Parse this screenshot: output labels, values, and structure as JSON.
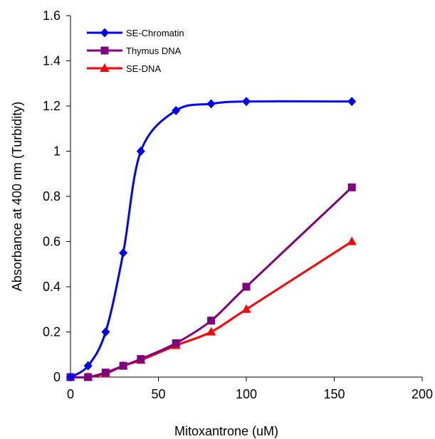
{
  "chart_data": {
    "type": "line",
    "title": "",
    "xlabel": "Mitoxantrone (uM)",
    "ylabel": "Absorbance at 400 nm (Turbidity)",
    "xlim": [
      0,
      200
    ],
    "ylim": [
      0,
      1.6
    ],
    "xticks": [
      0,
      50,
      100,
      150,
      200
    ],
    "yticks": [
      0,
      0.2,
      0.4,
      0.6,
      0.8,
      1,
      1.2,
      1.4,
      1.6
    ],
    "grid": false,
    "smooth": true,
    "legend_position": "top-left",
    "series": [
      {
        "name": "SE-Chromatin",
        "color": "#0000ff",
        "marker": "diamond",
        "x": [
          0,
          10,
          20,
          30,
          40,
          60,
          80,
          100,
          160
        ],
        "y": [
          0,
          0.05,
          0.2,
          0.55,
          1.0,
          1.18,
          1.21,
          1.22,
          1.22
        ]
      },
      {
        "name": "Thymus DNA",
        "color": "#800080",
        "marker": "square",
        "x": [
          0,
          10,
          20,
          30,
          40,
          60,
          80,
          100,
          160
        ],
        "y": [
          0,
          0.0,
          0.02,
          0.05,
          0.08,
          0.15,
          0.25,
          0.4,
          0.84
        ]
      },
      {
        "name": "SE-DNA",
        "color": "#ff0000",
        "marker": "triangle",
        "x": [
          0,
          10,
          20,
          30,
          40,
          60,
          80,
          100,
          160
        ],
        "y": [
          0,
          0.0,
          0.015,
          0.05,
          0.075,
          0.14,
          0.2,
          0.3,
          0.6
        ]
      }
    ]
  }
}
